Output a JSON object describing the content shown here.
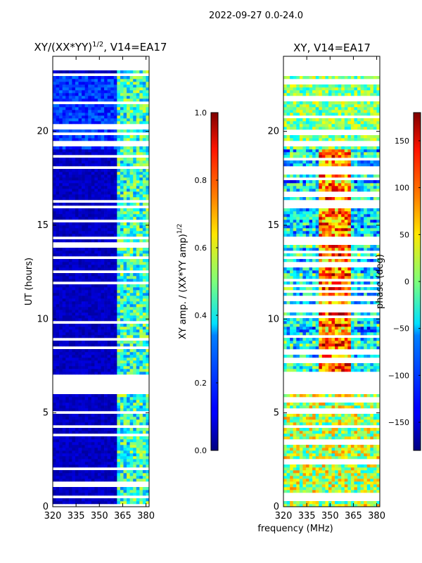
{
  "figure_title": "2022-09-27 0.0-24.0",
  "shared_xlabel": "frequency (MHz)",
  "chart_data": [
    {
      "type": "heatmap",
      "title": "XY/(XX*YY)",
      "title_superscript": "1/2",
      "title_suffix": ", V14=EA17",
      "xlabel": "",
      "ylabel": "UT (hours)",
      "xlim": [
        320,
        382
      ],
      "ylim": [
        0,
        24
      ],
      "x_ticks": [
        320,
        335,
        350,
        365,
        380
      ],
      "y_ticks": [
        0,
        5,
        10,
        15,
        20
      ],
      "colormap": "jet",
      "colorbar": {
        "label": "XY amp. / (XX*YY amp)",
        "label_superscript": "1/2",
        "range": [
          0.0,
          1.0
        ],
        "ticks": [
          0.0,
          0.2,
          0.4,
          0.6,
          0.8,
          1.0
        ],
        "tick_labels": [
          "0.0",
          "0.2",
          "0.4",
          "0.6",
          "0.8",
          "1.0"
        ]
      },
      "missing_data_hours": [
        [
          6.0,
          7.1
        ],
        [
          19.2,
          19.5
        ],
        [
          23.3,
          24.0
        ]
      ],
      "features": [
        {
          "freq_range": [
            320,
            360
          ],
          "typical_value": 0.05
        },
        {
          "freq_range": [
            360,
            382
          ],
          "typical_value": 0.4
        }
      ]
    },
    {
      "type": "heatmap",
      "title": "XY, V14=EA17",
      "xlabel": "",
      "ylabel": "",
      "xlim": [
        320,
        382
      ],
      "ylim": [
        0,
        24
      ],
      "x_ticks": [
        320,
        335,
        350,
        365,
        380
      ],
      "y_ticks": [
        0,
        5,
        10,
        15,
        20
      ],
      "colormap": "jet",
      "colorbar": {
        "label": "phase (deg)",
        "range": [
          -180,
          180
        ],
        "ticks": [
          -150,
          -100,
          -50,
          0,
          50,
          100,
          150
        ],
        "tick_labels": [
          "−150",
          "−100",
          "−50",
          "0",
          "50",
          "100",
          "150"
        ]
      },
      "missing_data_hours": [
        [
          6.0,
          7.1
        ],
        [
          19.2,
          19.5
        ],
        [
          23.3,
          24.0
        ]
      ]
    }
  ]
}
